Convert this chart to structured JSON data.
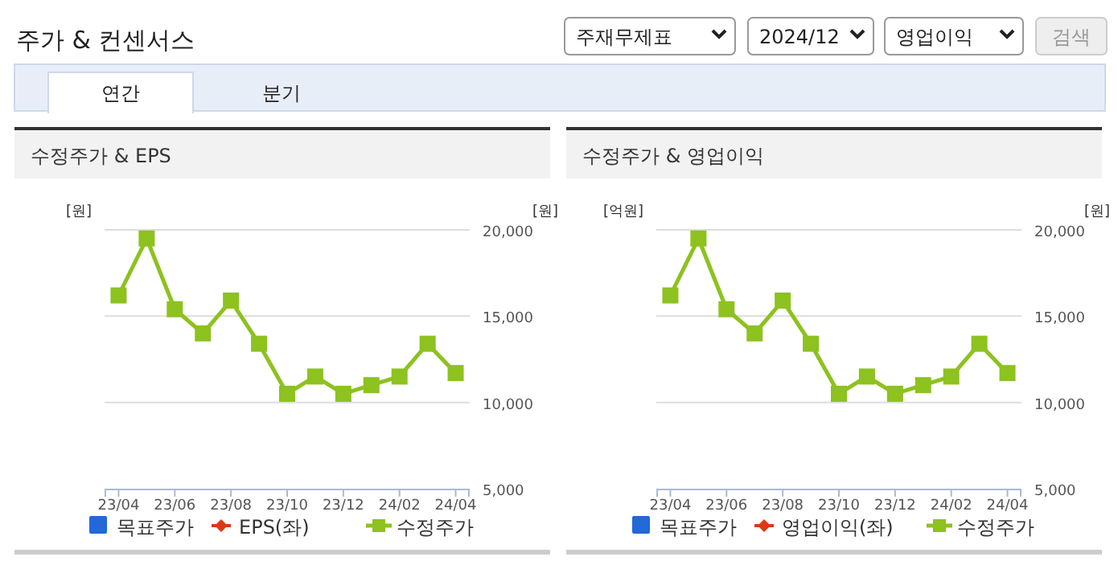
{
  "chart_data": [
    {
      "type": "other",
      "title": "주가 & 컨센서스",
      "annotations": [
        "주재무제표",
        "2024/12",
        "영업이익",
        "검색",
        "연간",
        "분기"
      ]
    },
    {
      "type": "line",
      "title": "수정주가 & EPS",
      "ylabel": "[원]",
      "y2label": "[원]",
      "categories": [
        "23/04",
        null,
        "23/06",
        null,
        "23/08",
        null,
        "23/10",
        null,
        "23/12",
        null,
        "24/02",
        null,
        "24/04"
      ],
      "y2lim": [
        5000,
        20000
      ],
      "y2ticks": [
        {
          "value": 5000,
          "label": "5,000"
        },
        {
          "value": 10000,
          "label": "10,000"
        },
        {
          "value": 15000,
          "label": "15,000"
        },
        {
          "value": 20000,
          "label": "20,000"
        }
      ],
      "grid": "y",
      "legend": "bottom",
      "marker": "square",
      "line_style": "solid",
      "tick_labels": "x",
      "series": [
        {
          "name": "목표주가",
          "type": "bar",
          "color": "#2268d8",
          "values": [
            null,
            null,
            null,
            null,
            null,
            null,
            null,
            null,
            null,
            null,
            null,
            null,
            null
          ]
        },
        {
          "name": "EPS(좌)",
          "type": "line",
          "color": "#d93a14",
          "values": [
            null,
            null,
            null,
            null,
            null,
            null,
            null,
            null,
            null,
            null,
            null,
            null,
            null
          ]
        },
        {
          "name": "수정주가",
          "type": "line",
          "axis": "y2",
          "color": "#8dc21f",
          "values": [
            16200,
            19500,
            15400,
            14000,
            15900,
            13400,
            10500,
            11500,
            10500,
            11000,
            11500,
            13400,
            11700
          ]
        }
      ]
    },
    {
      "type": "line",
      "title": "수정주가 & 영업이익",
      "ylabel": "[억원]",
      "y2label": "[원]",
      "categories": [
        "23/04",
        null,
        "23/06",
        null,
        "23/08",
        null,
        "23/10",
        null,
        "23/12",
        null,
        "24/02",
        null,
        "24/04"
      ],
      "y2lim": [
        5000,
        20000
      ],
      "y2ticks": [
        {
          "value": 5000,
          "label": "5,000"
        },
        {
          "value": 10000,
          "label": "10,000"
        },
        {
          "value": 15000,
          "label": "15,000"
        },
        {
          "value": 20000,
          "label": "20,000"
        }
      ],
      "grid": "y",
      "legend": "bottom",
      "marker": "square",
      "line_style": "solid",
      "tick_labels": "x",
      "series": [
        {
          "name": "목표주가",
          "type": "bar",
          "color": "#2268d8",
          "values": [
            null,
            null,
            null,
            null,
            null,
            null,
            null,
            null,
            null,
            null,
            null,
            null,
            null
          ]
        },
        {
          "name": "영업이익(좌)",
          "type": "line",
          "color": "#d93a14",
          "values": [
            null,
            null,
            null,
            null,
            null,
            null,
            null,
            null,
            null,
            null,
            null,
            null,
            null
          ]
        },
        {
          "name": "수정주가",
          "type": "line",
          "axis": "y2",
          "color": "#8dc21f",
          "values": [
            16200,
            19500,
            15400,
            14000,
            15900,
            13400,
            10500,
            11500,
            10500,
            11000,
            11500,
            13400,
            11700
          ]
        }
      ]
    }
  ]
}
